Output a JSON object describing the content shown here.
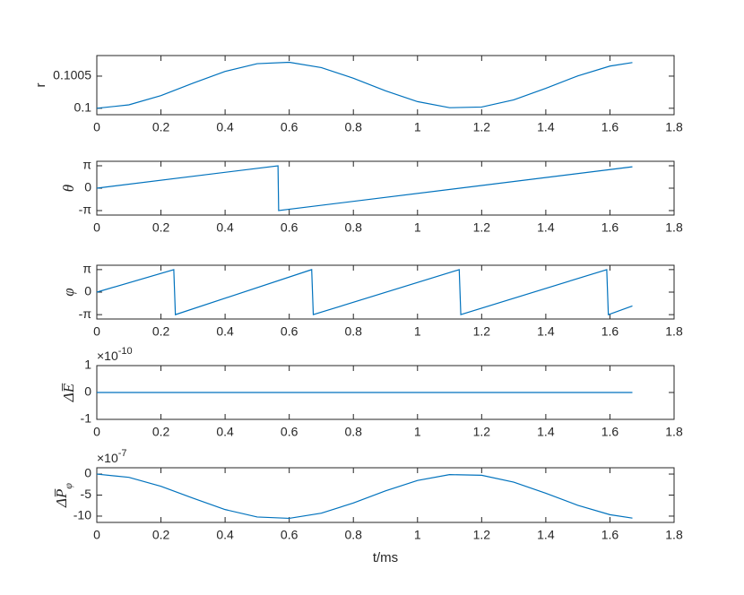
{
  "chart_data": [
    {
      "type": "line",
      "ylabel": "r",
      "x": [
        0,
        0.1,
        0.2,
        0.3,
        0.4,
        0.5,
        0.6,
        0.7,
        0.8,
        0.9,
        1.0,
        1.1,
        1.2,
        1.3,
        1.4,
        1.5,
        1.6,
        1.67
      ],
      "values": [
        0.1,
        0.1000533,
        0.1001975,
        0.1003897,
        0.1005733,
        0.1006935,
        0.1007151,
        0.1006324,
        0.1004676,
        0.1002718,
        0.1001037,
        0.1000087,
        0.1000195,
        0.1001312,
        0.1003106,
        0.1005045,
        0.100656,
        0.1007113
      ],
      "color": "#0072bd",
      "xlim": [
        0,
        1.8
      ],
      "xticks": [
        0,
        0.2,
        0.4,
        0.6,
        0.8,
        1,
        1.2,
        1.4,
        1.6,
        1.8
      ],
      "ylim": [
        0.0999,
        0.10082
      ],
      "yticks": [
        0.1,
        0.1005
      ]
    },
    {
      "type": "line",
      "ylabel": "θ",
      "x": [
        0,
        0.565,
        0.567,
        1.67
      ],
      "values": [
        0,
        3.1416,
        -3.1416,
        3.0
      ],
      "color": "#0072bd",
      "xlim": [
        0,
        1.8
      ],
      "xticks": [
        0,
        0.2,
        0.4,
        0.6,
        0.8,
        1,
        1.2,
        1.4,
        1.6,
        1.8
      ],
      "ylim": [
        -3.77,
        3.77
      ],
      "yticks": [
        {
          "value": -3.1416,
          "label": "-π"
        },
        0,
        {
          "value": 3.1416,
          "label": "π"
        }
      ]
    },
    {
      "type": "line",
      "ylabel": "φ",
      "x": [
        0,
        0.24,
        0.245,
        0.67,
        0.675,
        1.13,
        1.135,
        1.59,
        1.595,
        1.67
      ],
      "values": [
        0,
        3.1416,
        -3.1416,
        3.1416,
        -3.1416,
        3.1416,
        -3.1416,
        3.1416,
        -3.1416,
        -1.93
      ],
      "color": "#0072bd",
      "xlim": [
        0,
        1.8
      ],
      "xticks": [
        0,
        0.2,
        0.4,
        0.6,
        0.8,
        1,
        1.2,
        1.4,
        1.6,
        1.8
      ],
      "ylim": [
        -3.75,
        3.75
      ],
      "yticks": [
        {
          "value": -3.1416,
          "label": "-π"
        },
        0,
        {
          "value": 3.1416,
          "label": "π"
        }
      ]
    },
    {
      "type": "line",
      "ylabel": "ΔE̅",
      "y_multiplier": {
        "base": "×10",
        "exponent": "-10"
      },
      "x": [
        0,
        1.67
      ],
      "values": [
        0,
        0
      ],
      "color": "#0072bd",
      "xlim": [
        0,
        1.8
      ],
      "xticks": [
        0,
        0.2,
        0.4,
        0.6,
        0.8,
        1,
        1.2,
        1.4,
        1.6,
        1.8
      ],
      "ylim": [
        -1,
        1
      ],
      "yticks": [
        -1,
        0,
        1
      ]
    },
    {
      "type": "line",
      "ylabel": "ΔP̅",
      "ylabel_sub": "φ",
      "y_multiplier": {
        "base": "×10",
        "exponent": "-7"
      },
      "xlabel": "t/ms",
      "x": [
        0,
        0.1,
        0.2,
        0.3,
        0.4,
        0.5,
        0.6,
        0.7,
        0.8,
        0.9,
        1.0,
        1.1,
        1.2,
        1.3,
        1.4,
        1.5,
        1.6,
        1.67
      ],
      "values": [
        0,
        -0.78,
        -2.91,
        -5.74,
        -8.44,
        -10.21,
        -10.53,
        -9.31,
        -6.88,
        -4.0,
        -1.53,
        -0.13,
        -0.29,
        -1.93,
        -4.57,
        -7.43,
        -9.66,
        -10.47
      ],
      "color": "#0072bd",
      "xlim": [
        0,
        1.8
      ],
      "xticks": [
        0,
        0.2,
        0.4,
        0.6,
        0.8,
        1,
        1.2,
        1.4,
        1.6,
        1.8
      ],
      "ylim": [
        -11.5,
        1.5
      ],
      "yticks": [
        -10,
        -5,
        0
      ]
    }
  ]
}
